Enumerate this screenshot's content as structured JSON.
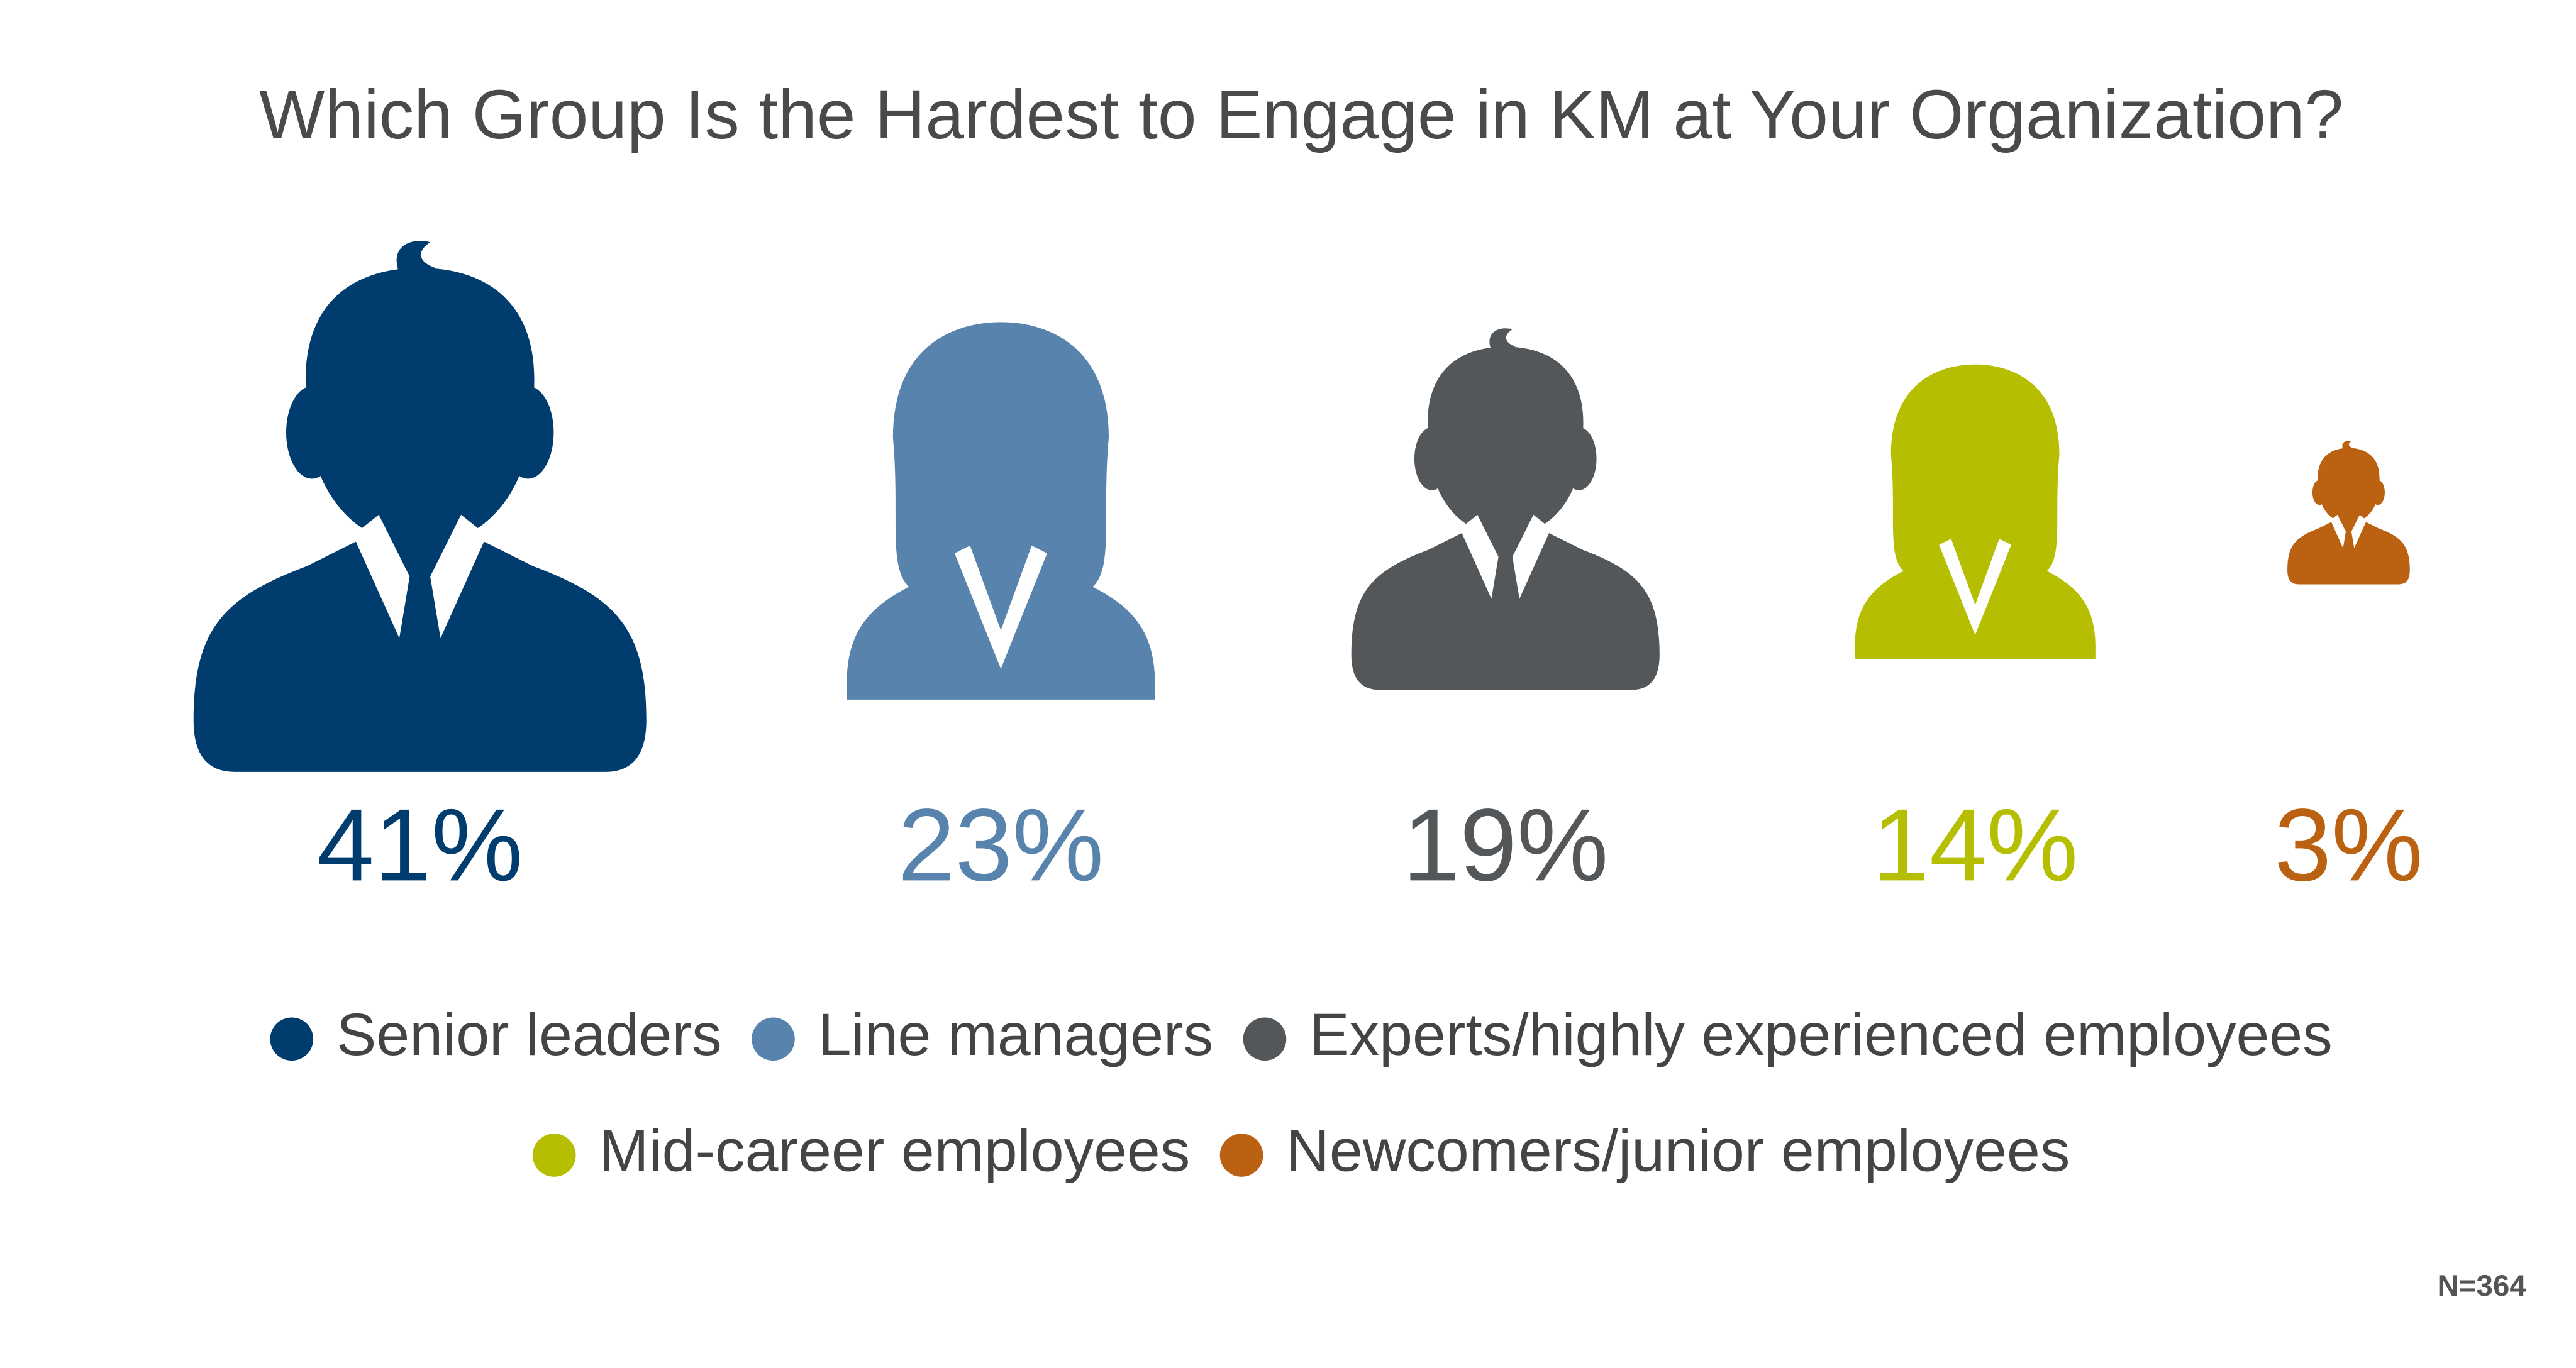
{
  "chart_data": {
    "type": "pictograph",
    "title": "Which Group Is the Hardest to Engage in KM at Your Organization?",
    "categories": [
      "Senior leaders",
      "Line managers",
      "Experts/highly experienced employees",
      "Mid-career employees",
      "Newcomers/junior employees"
    ],
    "values": [
      41,
      23,
      19,
      14,
      3
    ],
    "value_labels": [
      "41%",
      "23%",
      "19%",
      "14%",
      "3%"
    ],
    "colors": [
      "#003d6e",
      "#5783ad",
      "#54575a",
      "#b5be00",
      "#bb6212"
    ],
    "note": "N=364"
  }
}
